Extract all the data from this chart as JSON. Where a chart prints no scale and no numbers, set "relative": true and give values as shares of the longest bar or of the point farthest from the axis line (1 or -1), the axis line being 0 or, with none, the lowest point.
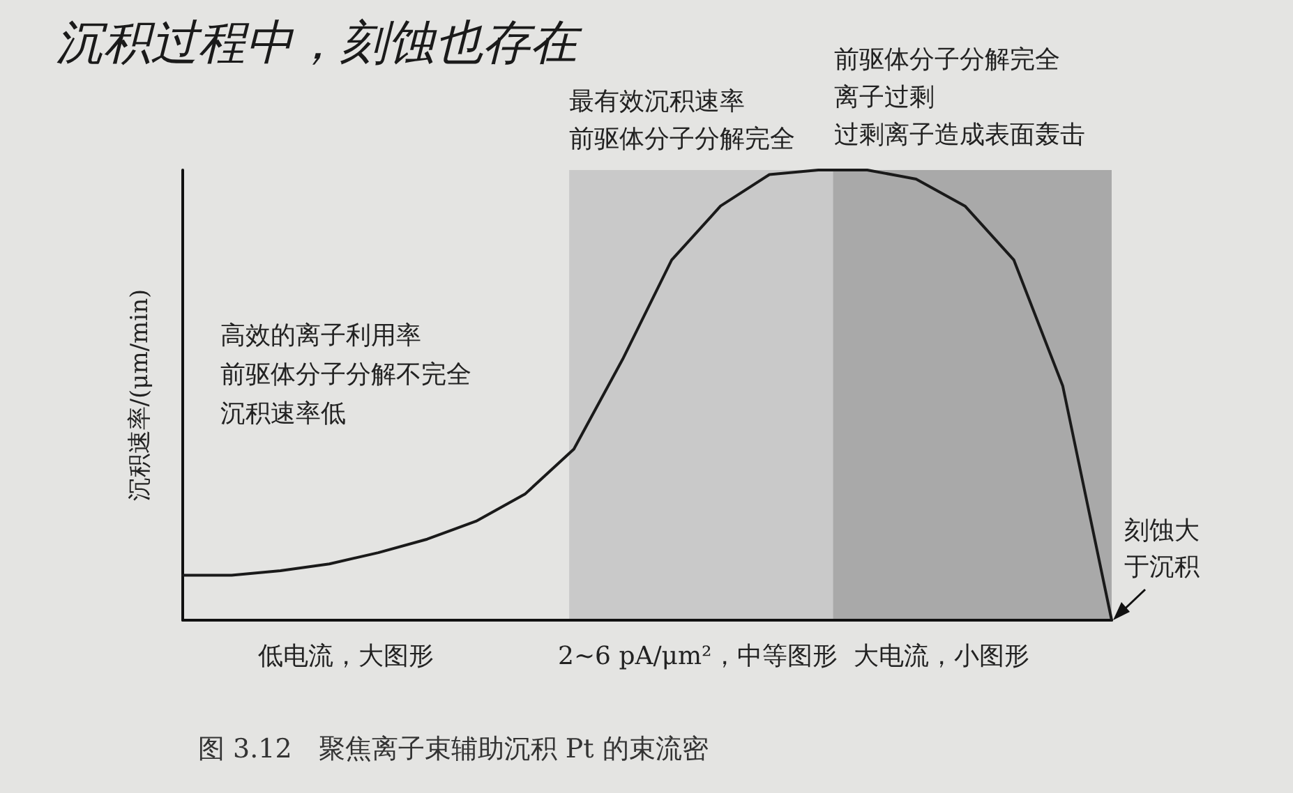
{
  "chart_data": {
    "type": "line",
    "relative": true,
    "ylabel": "沉积速率/(μm/min)",
    "marker": "none",
    "line_style": "solid",
    "categories": [
      null,
      null,
      null,
      null,
      null,
      null,
      null,
      null,
      null,
      null,
      null,
      null,
      null,
      null,
      null,
      null,
      null,
      null,
      null,
      null
    ],
    "series": [
      {
        "color": "#1a1a1a",
        "values": [
          0.1,
          0.1,
          0.11,
          0.125,
          0.15,
          0.18,
          0.22,
          0.28,
          0.38,
          0.58,
          0.8,
          0.92,
          0.99,
          1.0,
          1.0,
          0.98,
          0.92,
          0.8,
          0.52,
          0
        ]
      }
    ],
    "annotations": [
      "沉积过程中，刻蚀也存在",
      "最有效沉积速率",
      "前驱体分子分解完全",
      "前驱体分子分解完全",
      "离子过剩",
      "过剩离子造成表面轰击",
      "高效的离子利用率",
      "前驱体分子分解不完全",
      "沉积速率低",
      "低电流，大图形",
      "2~6 pA/μm²，中等图形",
      "大电流，小图形",
      "刻蚀大",
      "于沉积",
      "图 3.12　聚焦离子束辅助沉积 Pt 的束流密"
    ]
  }
}
